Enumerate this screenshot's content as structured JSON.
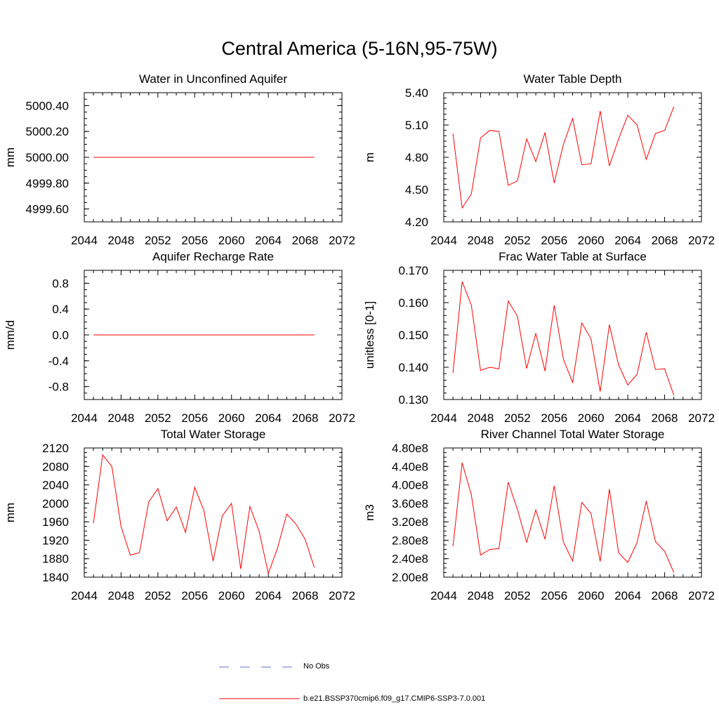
{
  "figure": {
    "title": "Central America (5-16N,95-75W)",
    "line_color": "#ff0000",
    "obs_color": "#5b6fd6"
  },
  "legend": {
    "obs_label": "No Obs",
    "model_label": "b.e21.BSSP370cmip6.f09_g17.CMIP6-SSP3-7.0.001"
  },
  "chart_data": [
    {
      "type": "line",
      "title": "Water in Unconfined Aquifer",
      "ylabel": "mm",
      "xlim": [
        2044,
        2072
      ],
      "ylim": [
        4999.5,
        5000.5
      ],
      "xticks": [
        "2044",
        "2048",
        "2052",
        "2056",
        "2060",
        "2064",
        "2068",
        "2072"
      ],
      "yticks": [
        {
          "v": 4999.6,
          "label": "4999.60"
        },
        {
          "v": 4999.8,
          "label": "4999.80"
        },
        {
          "v": 5000.0,
          "label": "5000.00"
        },
        {
          "v": 5000.2,
          "label": "5000.20"
        },
        {
          "v": 5000.4,
          "label": "5000.40"
        }
      ],
      "yminor": 0.05,
      "x": [
        2045,
        2046,
        2047,
        2048,
        2049,
        2050,
        2051,
        2052,
        2053,
        2054,
        2055,
        2056,
        2057,
        2058,
        2059,
        2060,
        2061,
        2062,
        2063,
        2064,
        2065,
        2066,
        2067,
        2068,
        2069
      ],
      "series": [
        {
          "values": [
            5000,
            5000,
            5000,
            5000,
            5000,
            5000,
            5000,
            5000,
            5000,
            5000,
            5000,
            5000,
            5000,
            5000,
            5000,
            5000,
            5000,
            5000,
            5000,
            5000,
            5000,
            5000,
            5000,
            5000,
            5000
          ]
        }
      ]
    },
    {
      "type": "line",
      "title": "Water Table Depth",
      "ylabel": "m",
      "xlim": [
        2044,
        2072
      ],
      "ylim": [
        4.2,
        5.4
      ],
      "xticks": [
        "2044",
        "2048",
        "2052",
        "2056",
        "2060",
        "2064",
        "2068",
        "2072"
      ],
      "yticks": [
        {
          "v": 4.2,
          "label": "4.20"
        },
        {
          "v": 4.5,
          "label": "4.50"
        },
        {
          "v": 4.8,
          "label": "4.80"
        },
        {
          "v": 5.1,
          "label": "5.10"
        },
        {
          "v": 5.4,
          "label": "5.40"
        }
      ],
      "yminor": 0.05,
      "x": [
        2045,
        2046,
        2047,
        2048,
        2049,
        2050,
        2051,
        2052,
        2053,
        2054,
        2055,
        2056,
        2057,
        2058,
        2059,
        2060,
        2061,
        2062,
        2063,
        2064,
        2065,
        2066,
        2067,
        2068,
        2069
      ],
      "series": [
        {
          "values": [
            5.02,
            4.33,
            4.46,
            4.98,
            5.05,
            5.04,
            4.54,
            4.58,
            4.97,
            4.76,
            5.03,
            4.56,
            4.92,
            5.16,
            4.73,
            4.74,
            5.23,
            4.72,
            4.97,
            5.19,
            5.1,
            4.78,
            5.02,
            5.05,
            5.27
          ]
        }
      ]
    },
    {
      "type": "line",
      "title": "Aquifer Recharge Rate",
      "ylabel": "mm/d",
      "xlim": [
        2044,
        2072
      ],
      "ylim": [
        -1,
        1
      ],
      "xticks": [
        "2044",
        "2048",
        "2052",
        "2056",
        "2060",
        "2064",
        "2068",
        "2072"
      ],
      "yticks": [
        {
          "v": -0.8,
          "label": "-0.8"
        },
        {
          "v": -0.4,
          "label": "-0.4"
        },
        {
          "v": 0,
          "label": "0.0"
        },
        {
          "v": 0.4,
          "label": "0.4"
        },
        {
          "v": 0.8,
          "label": "0.8"
        }
      ],
      "yminor": 0.1,
      "x": [
        2045,
        2046,
        2047,
        2048,
        2049,
        2050,
        2051,
        2052,
        2053,
        2054,
        2055,
        2056,
        2057,
        2058,
        2059,
        2060,
        2061,
        2062,
        2063,
        2064,
        2065,
        2066,
        2067,
        2068,
        2069
      ],
      "series": [
        {
          "values": [
            0,
            0,
            0,
            0,
            0,
            0,
            0,
            0,
            0,
            0,
            0,
            0,
            0,
            0,
            0,
            0,
            0,
            0,
            0,
            0,
            0,
            0,
            0,
            0,
            0
          ]
        }
      ]
    },
    {
      "type": "line",
      "title": "Frac Water Table at Surface",
      "ylabel": "unitless [0-1]",
      "xlim": [
        2044,
        2072
      ],
      "ylim": [
        0.13,
        0.17
      ],
      "xticks": [
        "2044",
        "2048",
        "2052",
        "2056",
        "2060",
        "2064",
        "2068",
        "2072"
      ],
      "yticks": [
        {
          "v": 0.13,
          "label": "0.130"
        },
        {
          "v": 0.14,
          "label": "0.140"
        },
        {
          "v": 0.15,
          "label": "0.150"
        },
        {
          "v": 0.16,
          "label": "0.160"
        },
        {
          "v": 0.17,
          "label": "0.170"
        }
      ],
      "yminor": 0.002,
      "x": [
        2045,
        2046,
        2047,
        2048,
        2049,
        2050,
        2051,
        2052,
        2053,
        2054,
        2055,
        2056,
        2057,
        2058,
        2059,
        2060,
        2061,
        2062,
        2063,
        2064,
        2065,
        2066,
        2067,
        2068,
        2069
      ],
      "series": [
        {
          "values": [
            0.1382,
            0.1665,
            0.1592,
            0.139,
            0.14,
            0.1395,
            0.1605,
            0.1558,
            0.1396,
            0.1505,
            0.1388,
            0.1592,
            0.1425,
            0.1353,
            0.1537,
            0.1488,
            0.1325,
            0.1532,
            0.1407,
            0.1345,
            0.1378,
            0.1508,
            0.1393,
            0.1395,
            0.1313
          ]
        }
      ]
    },
    {
      "type": "line",
      "title": "Total Water Storage",
      "ylabel": "mm",
      "xlim": [
        2044,
        2072
      ],
      "ylim": [
        1840,
        2120
      ],
      "xticks": [
        "2044",
        "2048",
        "2052",
        "2056",
        "2060",
        "2064",
        "2068",
        "2072"
      ],
      "yticks": [
        {
          "v": 1840,
          "label": "1840"
        },
        {
          "v": 1880,
          "label": "1880"
        },
        {
          "v": 1920,
          "label": "1920"
        },
        {
          "v": 1960,
          "label": "1960"
        },
        {
          "v": 2000,
          "label": "2000"
        },
        {
          "v": 2040,
          "label": "2040"
        },
        {
          "v": 2080,
          "label": "2080"
        },
        {
          "v": 2120,
          "label": "2120"
        }
      ],
      "yminor": 10,
      "x": [
        2045,
        2046,
        2047,
        2048,
        2049,
        2050,
        2051,
        2052,
        2053,
        2054,
        2055,
        2056,
        2057,
        2058,
        2059,
        2060,
        2061,
        2062,
        2063,
        2064,
        2065,
        2066,
        2067,
        2068,
        2069
      ],
      "series": [
        {
          "values": [
            1957,
            2105,
            2080,
            1950,
            1888,
            1893,
            2003,
            2032,
            1962,
            1992,
            1937,
            2035,
            1984,
            1875,
            1973,
            2000,
            1858,
            1993,
            1940,
            1848,
            1903,
            1977,
            1955,
            1922,
            1861
          ]
        }
      ]
    },
    {
      "type": "line",
      "title": "River Channel Total Water Storage",
      "ylabel": "m3",
      "xlim": [
        2044,
        2072
      ],
      "ylim": [
        2.0,
        4.8
      ],
      "yunit": "e8",
      "xticks": [
        "2044",
        "2048",
        "2052",
        "2056",
        "2060",
        "2064",
        "2068",
        "2072"
      ],
      "yticks": [
        {
          "v": 2.0,
          "label": "2.00e8"
        },
        {
          "v": 2.4,
          "label": "2.40e8"
        },
        {
          "v": 2.8,
          "label": "2.80e8"
        },
        {
          "v": 3.2,
          "label": "3.20e8"
        },
        {
          "v": 3.6,
          "label": "3.60e8"
        },
        {
          "v": 4.0,
          "label": "4.00e8"
        },
        {
          "v": 4.4,
          "label": "4.40e8"
        },
        {
          "v": 4.8,
          "label": "4.80e8"
        }
      ],
      "yminor": 0.1,
      "x": [
        2045,
        2046,
        2047,
        2048,
        2049,
        2050,
        2051,
        2052,
        2053,
        2054,
        2055,
        2056,
        2057,
        2058,
        2059,
        2060,
        2061,
        2062,
        2063,
        2064,
        2065,
        2066,
        2067,
        2068,
        2069
      ],
      "series": [
        {
          "values": [
            2.67,
            4.48,
            3.78,
            2.48,
            2.6,
            2.62,
            4.06,
            3.47,
            2.76,
            3.46,
            2.82,
            3.98,
            2.76,
            2.35,
            3.62,
            3.38,
            2.34,
            3.91,
            2.53,
            2.32,
            2.75,
            3.65,
            2.77,
            2.56,
            2.1
          ]
        }
      ]
    }
  ]
}
